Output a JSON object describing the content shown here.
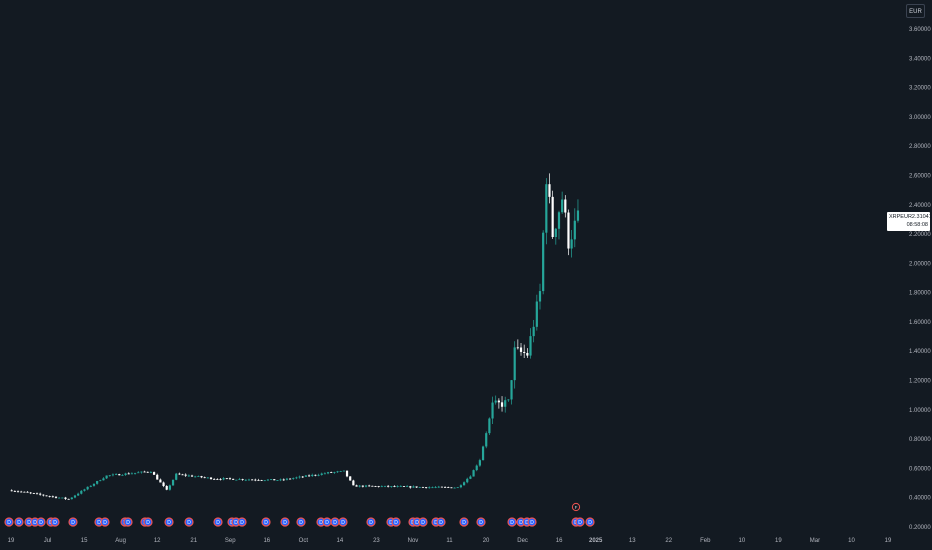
{
  "currency_button": "EUR",
  "price_label": {
    "symbol": "XRPEUR",
    "price": "2.31041",
    "countdown": "08:58:08"
  },
  "colors": {
    "background": "#131a22",
    "up": "#26a69a",
    "down": "#ffffff",
    "event_ring": "#ef5350",
    "event_fill": "#2962ff"
  },
  "event_markers": {
    "label": "D",
    "special_label": "F"
  },
  "chart_data": {
    "type": "candlestick",
    "symbol": "XRPEUR",
    "currency": "EUR",
    "last_price": 2.31041,
    "y_ticks": [
      "3.60000",
      "3.40000",
      "3.20000",
      "3.00000",
      "2.80000",
      "2.60000",
      "2.40000",
      "2.20000",
      "2.00000",
      "1.80000",
      "1.60000",
      "1.40000",
      "1.20000",
      "1.00000",
      "0.80000",
      "0.60000",
      "0.40000",
      "0.20000"
    ],
    "y_range": [
      0.2,
      3.6
    ],
    "x_labels": [
      "19",
      "Jul",
      "15",
      "Aug",
      "12",
      "21",
      "Sep",
      "16",
      "Oct",
      "14",
      "23",
      "Nov",
      "11",
      "20",
      "Dec",
      "16",
      "2025",
      "13",
      "22",
      "Feb",
      "10",
      "19",
      "Mar",
      "10",
      "19"
    ],
    "price_path": [
      {
        "date": "2024-06-17",
        "price": 0.45
      },
      {
        "date": "2024-07-05",
        "price": 0.39
      },
      {
        "date": "2024-07-17",
        "price": 0.55
      },
      {
        "date": "2024-07-31",
        "price": 0.58
      },
      {
        "date": "2024-08-05",
        "price": 0.45
      },
      {
        "date": "2024-08-08",
        "price": 0.56
      },
      {
        "date": "2024-08-20",
        "price": 0.53
      },
      {
        "date": "2024-09-10",
        "price": 0.52
      },
      {
        "date": "2024-09-25",
        "price": 0.57
      },
      {
        "date": "2024-09-30",
        "price": 0.58
      },
      {
        "date": "2024-10-03",
        "price": 0.48
      },
      {
        "date": "2024-10-31",
        "price": 0.47
      },
      {
        "date": "2024-11-05",
        "price": 0.47
      },
      {
        "date": "2024-11-09",
        "price": 0.55
      },
      {
        "date": "2024-11-12",
        "price": 0.66
      },
      {
        "date": "2024-11-16",
        "price": 1.03
      },
      {
        "date": "2024-11-21",
        "price": 1.05
      },
      {
        "date": "2024-11-23",
        "price": 1.4
      },
      {
        "date": "2024-11-27",
        "price": 1.38
      },
      {
        "date": "2024-12-01",
        "price": 1.8
      },
      {
        "date": "2024-12-03",
        "price": 2.6
      },
      {
        "date": "2024-12-05",
        "price": 2.2
      },
      {
        "date": "2024-12-08",
        "price": 2.45
      },
      {
        "date": "2024-12-10",
        "price": 2.15
      },
      {
        "date": "2024-12-13",
        "price": 2.31
      }
    ]
  }
}
